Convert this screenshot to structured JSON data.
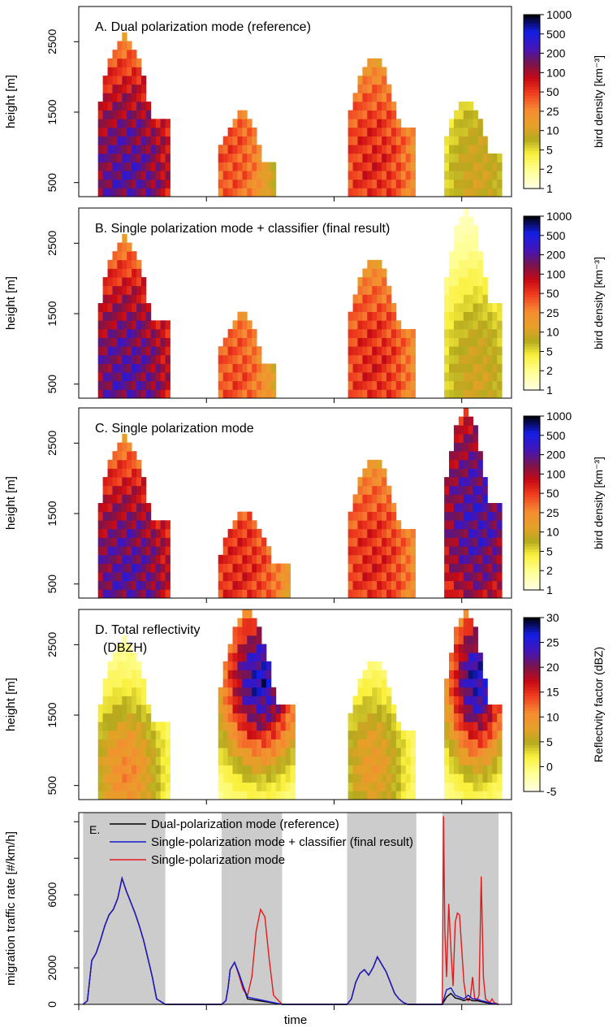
{
  "figure": {
    "xlabel": "time",
    "ylabel_height": "height [m]",
    "ylabel_mtr": "migration traffic rate [#/km/h]"
  },
  "chart_data": [
    {
      "type": "heatmap",
      "title": "A. Dual polarization mode (reference)",
      "ylim": [
        300,
        3000
      ],
      "yticks": [
        500,
        1500,
        2500
      ],
      "colorbar": {
        "label": "bird density  [km⁻³]",
        "ticks": [
          "1000",
          "500",
          "200",
          "100",
          "50",
          "25",
          "10",
          "5",
          "2",
          "1"
        ],
        "scale": "log"
      },
      "nights": [
        {
          "start": 0.04,
          "end": 0.21,
          "center": 0.11,
          "peak": 250,
          "top": 2600,
          "peakHeight": 600
        },
        {
          "start": 0.32,
          "end": 0.46,
          "center": 0.35,
          "peak": 40,
          "top": 1500,
          "peakHeight": 900
        },
        {
          "start": 0.62,
          "end": 0.78,
          "center": 0.68,
          "peak": 60,
          "top": 2300,
          "peakHeight": 800
        },
        {
          "start": 0.84,
          "end": 0.98,
          "center": 0.92,
          "peak": 8,
          "top": 1700,
          "peakHeight": 600
        }
      ]
    },
    {
      "type": "heatmap",
      "title": "B. Single polarization mode + classifier (final result)",
      "ylim": [
        300,
        3000
      ],
      "yticks": [
        500,
        1500,
        2500
      ],
      "colorbar": {
        "label": "bird density  [km⁻³]",
        "ticks": [
          "1000",
          "500",
          "200",
          "100",
          "50",
          "25",
          "10",
          "5",
          "2",
          "1"
        ],
        "scale": "log"
      },
      "nights": [
        {
          "start": 0.04,
          "end": 0.21,
          "center": 0.11,
          "peak": 250,
          "top": 2600,
          "peakHeight": 600
        },
        {
          "start": 0.32,
          "end": 0.46,
          "center": 0.36,
          "peak": 40,
          "top": 1500,
          "peakHeight": 600
        },
        {
          "start": 0.62,
          "end": 0.78,
          "center": 0.68,
          "peak": 60,
          "top": 2300,
          "peakHeight": 800
        },
        {
          "start": 0.84,
          "end": 0.98,
          "center": 0.92,
          "peak": 8,
          "top": 3000,
          "peakHeight": 600
        }
      ]
    },
    {
      "type": "heatmap",
      "title": "C. Single polarization mode",
      "ylim": [
        300,
        3000
      ],
      "yticks": [
        500,
        1500,
        2500
      ],
      "colorbar": {
        "label": "bird density  [km⁻³]",
        "ticks": [
          "1000",
          "500",
          "200",
          "100",
          "50",
          "25",
          "10",
          "5",
          "2",
          "1"
        ],
        "scale": "log"
      },
      "nights": [
        {
          "start": 0.04,
          "end": 0.21,
          "center": 0.11,
          "peak": 250,
          "top": 2600,
          "peakHeight": 600
        },
        {
          "start": 0.32,
          "end": 0.49,
          "center": 0.37,
          "peak": 60,
          "top": 1500,
          "peakHeight": 700
        },
        {
          "start": 0.62,
          "end": 0.78,
          "center": 0.68,
          "peak": 60,
          "top": 2300,
          "peakHeight": 800
        },
        {
          "start": 0.84,
          "end": 0.98,
          "center": 0.92,
          "peak": 300,
          "top": 3000,
          "peakHeight": 1500
        }
      ]
    },
    {
      "type": "heatmap",
      "title": "D. Total reflectivity",
      "subtitle": "(DBZH)",
      "ylim": [
        300,
        3000
      ],
      "yticks": [
        500,
        1500,
        2500
      ],
      "colorbar": {
        "label": "Reflectvity factor (dBZ)",
        "ticks": [
          "30",
          "25",
          "20",
          "15",
          "10",
          "5",
          "0",
          "-5"
        ],
        "scale": "linear"
      },
      "nights": [
        {
          "start": 0.04,
          "end": 0.21,
          "center": 0.11,
          "peak": 14,
          "top": 2600,
          "peakHeight": 700
        },
        {
          "start": 0.32,
          "end": 0.5,
          "center": 0.42,
          "peak": 30,
          "top": 3000,
          "peakHeight": 2000
        },
        {
          "start": 0.62,
          "end": 0.78,
          "center": 0.68,
          "peak": 12,
          "top": 2300,
          "peakHeight": 800
        },
        {
          "start": 0.84,
          "end": 0.98,
          "center": 0.92,
          "peak": 30,
          "top": 3000,
          "peakHeight": 2000
        }
      ]
    },
    {
      "type": "line",
      "title": "E.",
      "ylim": [
        0,
        10500
      ],
      "yticks": [
        0,
        2000,
        6000
      ],
      "night_shading": [
        [
          0.01,
          0.2
        ],
        [
          0.33,
          0.47
        ],
        [
          0.62,
          0.78
        ],
        [
          0.84,
          0.97
        ]
      ],
      "series": [
        {
          "name": "Dual-polarization mode (reference)",
          "color": "#000000",
          "x": [
            0.01,
            0.02,
            0.03,
            0.04,
            0.05,
            0.06,
            0.07,
            0.08,
            0.09,
            0.1,
            0.11,
            0.12,
            0.13,
            0.14,
            0.15,
            0.16,
            0.17,
            0.18,
            0.2,
            0.33,
            0.34,
            0.345,
            0.35,
            0.36,
            0.37,
            0.38,
            0.39,
            0.47,
            0.62,
            0.63,
            0.64,
            0.65,
            0.66,
            0.67,
            0.68,
            0.69,
            0.7,
            0.71,
            0.72,
            0.73,
            0.74,
            0.75,
            0.76,
            0.78,
            0.84,
            0.85,
            0.86,
            0.87,
            0.88,
            0.89,
            0.9,
            0.91,
            0.92,
            0.93,
            0.94,
            0.95,
            0.97
          ],
          "y": [
            0,
            200,
            2400,
            2800,
            3500,
            4300,
            4900,
            5200,
            5800,
            6900,
            6200,
            5600,
            5000,
            4300,
            3500,
            2500,
            1500,
            300,
            0,
            0,
            200,
            900,
            1900,
            2300,
            1700,
            1000,
            300,
            0,
            0,
            300,
            1200,
            1700,
            1900,
            1600,
            2000,
            2600,
            2200,
            1800,
            1200,
            600,
            300,
            100,
            0,
            0,
            0,
            400,
            600,
            350,
            300,
            200,
            300,
            200,
            200,
            150,
            100,
            50,
            0
          ]
        },
        {
          "name": "Single-polarization mode + classifier (final result)",
          "color": "#1a1acc",
          "x": [
            0.01,
            0.02,
            0.03,
            0.04,
            0.05,
            0.06,
            0.07,
            0.08,
            0.09,
            0.1,
            0.11,
            0.12,
            0.13,
            0.14,
            0.15,
            0.16,
            0.17,
            0.18,
            0.2,
            0.33,
            0.34,
            0.345,
            0.35,
            0.36,
            0.37,
            0.38,
            0.39,
            0.47,
            0.62,
            0.63,
            0.64,
            0.65,
            0.66,
            0.67,
            0.68,
            0.69,
            0.7,
            0.71,
            0.72,
            0.73,
            0.74,
            0.75,
            0.76,
            0.78,
            0.84,
            0.85,
            0.86,
            0.87,
            0.88,
            0.89,
            0.9,
            0.91,
            0.92,
            0.93,
            0.94,
            0.95,
            0.97
          ],
          "y": [
            0,
            200,
            2400,
            2800,
            3500,
            4300,
            4900,
            5200,
            5800,
            6900,
            6200,
            5600,
            5000,
            4300,
            3500,
            2500,
            1500,
            300,
            0,
            0,
            200,
            900,
            1900,
            2300,
            1700,
            1000,
            400,
            0,
            0,
            300,
            1200,
            1700,
            1900,
            1600,
            2000,
            2600,
            2200,
            1800,
            1200,
            600,
            300,
            100,
            0,
            0,
            0,
            800,
            900,
            500,
            400,
            300,
            500,
            300,
            300,
            200,
            150,
            80,
            0
          ]
        },
        {
          "name": "Single-polarization mode",
          "color": "#e41a1c",
          "x": [
            0.01,
            0.02,
            0.03,
            0.04,
            0.05,
            0.06,
            0.07,
            0.08,
            0.09,
            0.1,
            0.11,
            0.12,
            0.13,
            0.14,
            0.15,
            0.16,
            0.17,
            0.18,
            0.2,
            0.33,
            0.34,
            0.345,
            0.35,
            0.36,
            0.37,
            0.38,
            0.39,
            0.4,
            0.41,
            0.42,
            0.43,
            0.44,
            0.45,
            0.47,
            0.62,
            0.63,
            0.64,
            0.65,
            0.66,
            0.67,
            0.68,
            0.69,
            0.7,
            0.71,
            0.72,
            0.73,
            0.74,
            0.75,
            0.76,
            0.78,
            0.84,
            0.843,
            0.846,
            0.85,
            0.855,
            0.86,
            0.865,
            0.87,
            0.875,
            0.88,
            0.885,
            0.89,
            0.895,
            0.9,
            0.905,
            0.91,
            0.915,
            0.92,
            0.925,
            0.93,
            0.935,
            0.94,
            0.945,
            0.95,
            0.955,
            0.96,
            0.965,
            0.97
          ],
          "y": [
            0,
            200,
            2400,
            2800,
            3500,
            4300,
            4900,
            5200,
            5800,
            6900,
            6200,
            5600,
            5000,
            4300,
            3500,
            2500,
            1500,
            300,
            0,
            0,
            200,
            900,
            1900,
            2300,
            1600,
            800,
            500,
            1500,
            4000,
            5200,
            4800,
            2500,
            500,
            0,
            0,
            300,
            1200,
            1700,
            1900,
            1600,
            2000,
            2600,
            2200,
            1800,
            1200,
            600,
            300,
            100,
            0,
            0,
            0,
            10300,
            4000,
            1500,
            5500,
            3000,
            1000,
            4500,
            5000,
            4900,
            3000,
            1200,
            400,
            200,
            400,
            1500,
            300,
            200,
            500,
            7000,
            1500,
            300,
            200,
            100,
            300,
            100,
            50,
            0
          ]
        }
      ]
    }
  ]
}
